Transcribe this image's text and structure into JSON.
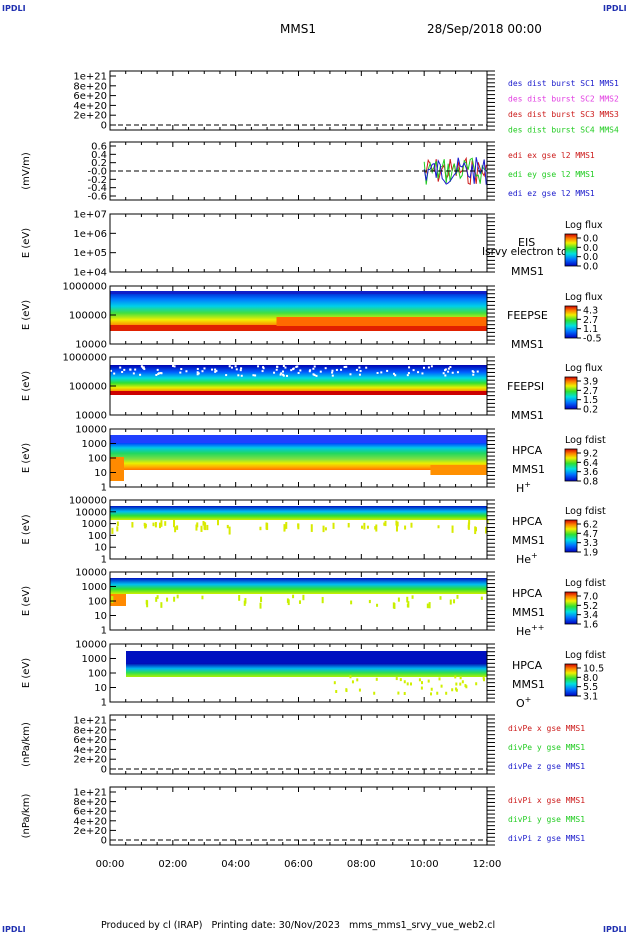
{
  "header": {
    "corner_left": "IPDLI",
    "corner_right": "IPDLI",
    "corner_bottom_left": "IPDLI",
    "corner_bottom_right": "IPDLI",
    "mission": "MMS1",
    "date": "28/Sep/2018 00:00"
  },
  "footer": {
    "text": "Produced by cl (IRAP)   Printing date: 30/Nov/2023   mms_mms1_srvy_vue_web2.cl"
  },
  "colors": {
    "axis": "#000000",
    "blue": "#1a1acc",
    "magenta": "#e23ee2",
    "red": "#cc1a1a",
    "green": "#22cc22"
  },
  "chart_data": [
    {
      "type": "line",
      "id": "panel-des",
      "ylabel": "",
      "ytick_labels": [
        "1e+21",
        "8e+20",
        "6e+20",
        "4e+20",
        "2e+20",
        "0"
      ],
      "yticks": [
        1e+21,
        8e+20,
        6e+20,
        4e+20,
        2e+20,
        0
      ],
      "ylim": [
        -1e+20,
        1.1e+21
      ],
      "dashed_zero": true,
      "series": [
        {
          "name": "des dist burst SC1 MMS1",
          "color": "#1a1acc",
          "values": []
        },
        {
          "name": "des dist burst SC2 MMS2",
          "color": "#e23ee2",
          "values": []
        },
        {
          "name": "des dist burst SC3 MMS3",
          "color": "#cc1a1a",
          "values": []
        },
        {
          "name": "des dist burst SC4 MMS4",
          "color": "#22cc22",
          "values": []
        }
      ]
    },
    {
      "type": "line",
      "id": "panel-edi",
      "ylabel": "(mV/m)",
      "ytick_labels": [
        "0.6",
        "0.4",
        "0.2",
        "-0.0",
        "-0.2",
        "-0.4",
        "-0.6"
      ],
      "yticks": [
        0.6,
        0.4,
        0.2,
        0.0,
        -0.2,
        -0.4,
        -0.6
      ],
      "ylim": [
        -0.7,
        0.7
      ],
      "dashed_zero": true,
      "series": [
        {
          "name": "edi ex gse l2 MMS1",
          "color": "#cc1a1a"
        },
        {
          "name": "edi ey gse l2 MMS1",
          "color": "#22cc22"
        },
        {
          "name": "edi ez gse l2 MMS1",
          "color": "#1a1acc"
        }
      ],
      "active_interval_hours": [
        10.0,
        12.0
      ]
    },
    {
      "type": "heatmap",
      "id": "panel-eis",
      "ylabel": "E (eV)",
      "ytick_labels": [
        "1e+07",
        "1e+06",
        "1e+05",
        "1e+04"
      ],
      "log_y": true,
      "ylim": [
        10000,
        10000000
      ],
      "side_labels": [
        "EIS",
        "MMS1"
      ],
      "overlay_text": "Isrvy electron to",
      "colorbar": {
        "title": "Log flux",
        "tick_labels": [
          "0.0",
          "0.0",
          "0.0",
          "0.0"
        ]
      },
      "coverage": "none"
    },
    {
      "type": "heatmap",
      "id": "panel-feepse",
      "ylabel": "E (eV)",
      "ytick_labels": [
        "1000000",
        "100000",
        "10000"
      ],
      "log_y": true,
      "ylim": [
        10000,
        1000000
      ],
      "side_labels": [
        "FEEPSE",
        "MMS1"
      ],
      "colorbar": {
        "title": "Log flux",
        "tick_labels": [
          "4.3",
          "2.7",
          "1.1",
          "-0.5"
        ]
      },
      "coverage": "full"
    },
    {
      "type": "heatmap",
      "id": "panel-feepsi",
      "ylabel": "E (eV)",
      "ytick_labels": [
        "1000000",
        "100000",
        "10000"
      ],
      "log_y": true,
      "ylim": [
        10000,
        1000000
      ],
      "side_labels": [
        "FEEPSI",
        "MMS1"
      ],
      "colorbar": {
        "title": "Log flux",
        "tick_labels": [
          "3.9",
          "2.7",
          "1.5",
          "0.2"
        ]
      },
      "coverage": "full"
    },
    {
      "type": "heatmap",
      "id": "panel-hpca-h",
      "ylabel": "E (eV)",
      "ytick_labels": [
        "10000",
        "1000",
        "100",
        "10",
        "1"
      ],
      "log_y": true,
      "ylim": [
        1,
        30000
      ],
      "side_labels": [
        "HPCA",
        "MMS1"
      ],
      "species": "H",
      "charge": "+",
      "colorbar": {
        "title": "Log fdist",
        "tick_labels": [
          "9.2",
          "6.4",
          "3.6",
          "0.8"
        ]
      },
      "coverage": "full"
    },
    {
      "type": "heatmap",
      "id": "panel-hpca-he",
      "ylabel": "E (eV)",
      "ytick_labels": [
        "100000",
        "10000",
        "1000",
        "100",
        "10",
        "1"
      ],
      "log_y": true,
      "ylim": [
        1,
        100000
      ],
      "side_labels": [
        "HPCA",
        "MMS1"
      ],
      "species": "He",
      "charge": "+",
      "colorbar": {
        "title": "Log fdist",
        "tick_labels": [
          "6.2",
          "4.7",
          "3.3",
          "1.9"
        ]
      },
      "coverage": "full"
    },
    {
      "type": "heatmap",
      "id": "panel-hpca-he2",
      "ylabel": "E (eV)",
      "ytick_labels": [
        "10000",
        "1000",
        "100",
        "10",
        "1"
      ],
      "log_y": true,
      "ylim": [
        1,
        30000
      ],
      "side_labels": [
        "HPCA",
        "MMS1"
      ],
      "species": "He",
      "charge": "++",
      "colorbar": {
        "title": "Log fdist",
        "tick_labels": [
          "7.0",
          "5.2",
          "3.4",
          "1.6"
        ]
      },
      "coverage": "full"
    },
    {
      "type": "heatmap",
      "id": "panel-hpca-o",
      "ylabel": "E (eV)",
      "ytick_labels": [
        "10000",
        "1000",
        "100",
        "10",
        "1"
      ],
      "log_y": true,
      "ylim": [
        1,
        30000
      ],
      "side_labels": [
        "HPCA",
        "MMS1"
      ],
      "species": "O",
      "charge": "+",
      "colorbar": {
        "title": "Log fdist",
        "tick_labels": [
          "10.5",
          "8.0",
          "5.5",
          "3.1"
        ]
      },
      "coverage": "full"
    },
    {
      "type": "line",
      "id": "panel-divpe",
      "ylabel": "(nPa/km)",
      "ytick_labels": [
        "1e+21",
        "8e+20",
        "6e+20",
        "4e+20",
        "2e+20",
        "0"
      ],
      "yticks": [
        1e+21,
        8e+20,
        6e+20,
        4e+20,
        2e+20,
        0
      ],
      "ylim": [
        -1e+20,
        1.1e+21
      ],
      "dashed_zero": true,
      "series": [
        {
          "name": "divPe x gse MMS1",
          "color": "#cc1a1a",
          "values": []
        },
        {
          "name": "divPe y gse MMS1",
          "color": "#22cc22",
          "values": []
        },
        {
          "name": "divPe z gse MMS1",
          "color": "#1a1acc",
          "values": []
        }
      ]
    },
    {
      "type": "line",
      "id": "panel-divpi",
      "ylabel": "(nPa/km)",
      "ytick_labels": [
        "1e+21",
        "8e+20",
        "6e+20",
        "4e+20",
        "2e+20",
        "0"
      ],
      "yticks": [
        1e+21,
        8e+20,
        6e+20,
        4e+20,
        2e+20,
        0
      ],
      "ylim": [
        -1e+20,
        1.1e+21
      ],
      "dashed_zero": true,
      "series": [
        {
          "name": "divPi x gse MMS1",
          "color": "#cc1a1a",
          "values": []
        },
        {
          "name": "divPi y gse MMS1",
          "color": "#22cc22",
          "values": []
        },
        {
          "name": "divPi z gse MMS1",
          "color": "#1a1acc",
          "values": []
        }
      ]
    }
  ],
  "x_axis": {
    "tick_labels": [
      "00:00",
      "02:00",
      "04:00",
      "06:00",
      "08:00",
      "10:00",
      "12:00"
    ],
    "xlim_hours": [
      0,
      12
    ]
  }
}
